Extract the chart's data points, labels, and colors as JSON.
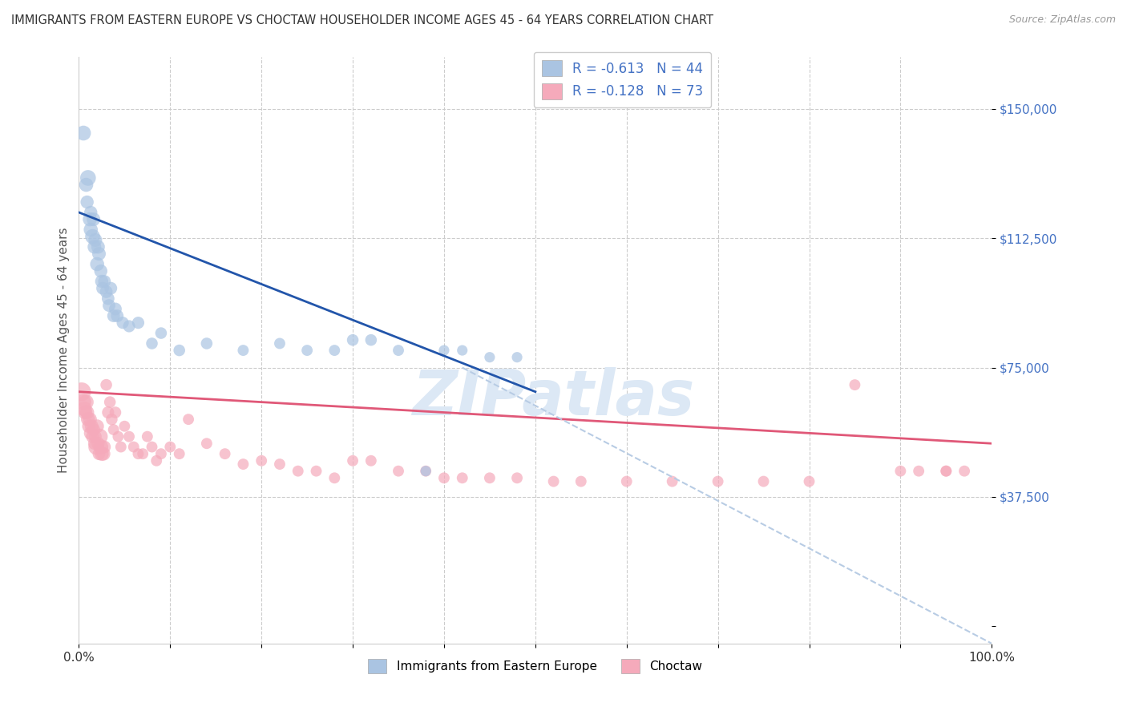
{
  "title": "IMMIGRANTS FROM EASTERN EUROPE VS CHOCTAW HOUSEHOLDER INCOME AGES 45 - 64 YEARS CORRELATION CHART",
  "source": "Source: ZipAtlas.com",
  "ylabel": "Householder Income Ages 45 - 64 years",
  "blue_label": "Immigrants from Eastern Europe",
  "pink_label": "Choctaw",
  "blue_R": -0.613,
  "blue_N": 44,
  "pink_R": -0.128,
  "pink_N": 73,
  "blue_color": "#aac4e2",
  "blue_edge_color": "#aac4e2",
  "blue_line_color": "#2255aa",
  "pink_color": "#f5aabb",
  "pink_edge_color": "#f5aabb",
  "pink_line_color": "#e05878",
  "dashed_color": "#b8cce4",
  "yticks": [
    0,
    37500,
    75000,
    112500,
    150000
  ],
  "ytick_labels": [
    "",
    "$37,500",
    "$75,000",
    "$112,500",
    "$150,000"
  ],
  "ylim": [
    -5000,
    165000
  ],
  "xlim": [
    0,
    1.0
  ],
  "xtick_positions": [
    0.0,
    0.1,
    0.2,
    0.3,
    0.4,
    0.5,
    0.6,
    0.7,
    0.8,
    0.9,
    1.0
  ],
  "xtick_labels": [
    "0.0%",
    "",
    "",
    "",
    "",
    "",
    "",
    "",
    "",
    "",
    "100.0%"
  ],
  "blue_x": [
    0.005,
    0.008,
    0.009,
    0.01,
    0.012,
    0.013,
    0.013,
    0.015,
    0.016,
    0.017,
    0.018,
    0.02,
    0.021,
    0.022,
    0.024,
    0.025,
    0.026,
    0.028,
    0.03,
    0.032,
    0.033,
    0.035,
    0.038,
    0.04,
    0.042,
    0.048,
    0.055,
    0.065,
    0.08,
    0.09,
    0.11,
    0.14,
    0.18,
    0.22,
    0.25,
    0.28,
    0.3,
    0.32,
    0.35,
    0.38,
    0.4,
    0.42,
    0.45,
    0.48
  ],
  "blue_y": [
    143000,
    128000,
    123000,
    130000,
    118000,
    120000,
    115000,
    113000,
    118000,
    110000,
    112000,
    105000,
    110000,
    108000,
    103000,
    100000,
    98000,
    100000,
    97000,
    95000,
    93000,
    98000,
    90000,
    92000,
    90000,
    88000,
    87000,
    88000,
    82000,
    85000,
    80000,
    82000,
    80000,
    82000,
    80000,
    80000,
    83000,
    83000,
    80000,
    45000,
    80000,
    80000,
    78000,
    78000
  ],
  "blue_sizes": [
    180,
    160,
    140,
    200,
    160,
    140,
    160,
    180,
    150,
    150,
    150,
    160,
    150,
    150,
    140,
    140,
    130,
    130,
    130,
    130,
    130,
    130,
    130,
    130,
    130,
    120,
    120,
    120,
    110,
    110,
    110,
    110,
    100,
    100,
    100,
    100,
    110,
    110,
    100,
    90,
    90,
    90,
    90,
    90
  ],
  "pink_x": [
    0.003,
    0.005,
    0.006,
    0.007,
    0.008,
    0.009,
    0.01,
    0.011,
    0.012,
    0.013,
    0.014,
    0.015,
    0.016,
    0.017,
    0.018,
    0.019,
    0.02,
    0.021,
    0.022,
    0.023,
    0.024,
    0.025,
    0.027,
    0.028,
    0.03,
    0.032,
    0.034,
    0.036,
    0.038,
    0.04,
    0.043,
    0.046,
    0.05,
    0.055,
    0.06,
    0.065,
    0.07,
    0.075,
    0.08,
    0.085,
    0.09,
    0.1,
    0.11,
    0.12,
    0.14,
    0.16,
    0.18,
    0.2,
    0.22,
    0.24,
    0.26,
    0.28,
    0.3,
    0.32,
    0.35,
    0.38,
    0.4,
    0.42,
    0.45,
    0.48,
    0.52,
    0.55,
    0.6,
    0.65,
    0.7,
    0.75,
    0.8,
    0.85,
    0.9,
    0.92,
    0.95,
    0.95,
    0.97
  ],
  "pink_y": [
    68000,
    65000,
    63000,
    62000,
    65000,
    62000,
    60000,
    58000,
    60000,
    56000,
    58000,
    55000,
    57000,
    53000,
    55000,
    52000,
    58000,
    53000,
    50000,
    55000,
    52000,
    50000,
    50000,
    52000,
    70000,
    62000,
    65000,
    60000,
    57000,
    62000,
    55000,
    52000,
    58000,
    55000,
    52000,
    50000,
    50000,
    55000,
    52000,
    48000,
    50000,
    52000,
    50000,
    60000,
    53000,
    50000,
    47000,
    48000,
    47000,
    45000,
    45000,
    43000,
    48000,
    48000,
    45000,
    45000,
    43000,
    43000,
    43000,
    43000,
    42000,
    42000,
    42000,
    42000,
    42000,
    42000,
    42000,
    70000,
    45000,
    45000,
    45000,
    45000,
    45000
  ],
  "pink_sizes": [
    280,
    200,
    180,
    160,
    180,
    160,
    160,
    150,
    160,
    150,
    150,
    140,
    140,
    130,
    130,
    200,
    150,
    140,
    130,
    200,
    180,
    160,
    150,
    130,
    110,
    120,
    110,
    110,
    100,
    110,
    100,
    100,
    100,
    100,
    100,
    100,
    100,
    100,
    100,
    100,
    100,
    100,
    100,
    100,
    100,
    100,
    100,
    100,
    100,
    100,
    100,
    100,
    100,
    100,
    100,
    100,
    100,
    100,
    100,
    100,
    100,
    100,
    100,
    100,
    100,
    100,
    100,
    100,
    100,
    100,
    100,
    100,
    100
  ],
  "blue_trend_x": [
    0.0,
    0.5
  ],
  "blue_trend_y": [
    120000,
    68000
  ],
  "pink_trend_x": [
    0.0,
    1.0
  ],
  "pink_trend_y": [
    68000,
    53000
  ],
  "dashed_trend_x": [
    0.42,
    1.0
  ],
  "dashed_trend_y": [
    75000,
    -5000
  ],
  "watermark": "ZIPatlas",
  "watermark_color": "#dce8f5",
  "background_color": "#ffffff",
  "grid_color": "#cccccc",
  "title_color": "#333333",
  "axis_label_color": "#555555",
  "ytick_color": "#4472c4",
  "title_fontsize": 10.5,
  "source_fontsize": 9,
  "ylabel_fontsize": 11,
  "tick_fontsize": 11
}
